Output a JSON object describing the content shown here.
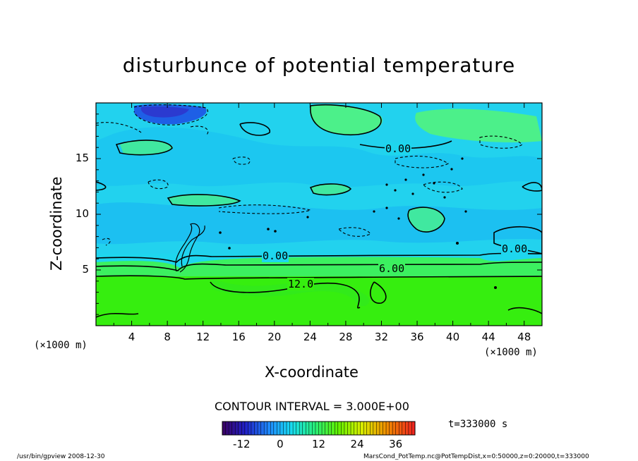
{
  "chart_data": {
    "type": "heatmap",
    "title": "disturbunce of potential temperature",
    "xlabel": "X-coordinate",
    "ylabel": "Z-coordinate",
    "x_unit_left": "(×1000 m)",
    "x_unit_right": "(×1000 m)",
    "xlim": [
      0,
      50
    ],
    "ylim": [
      0,
      20
    ],
    "x_ticks": [
      "4",
      "8",
      "12",
      "16",
      "20",
      "24",
      "28",
      "32",
      "36",
      "40",
      "44",
      "48"
    ],
    "y_ticks": [
      "5",
      "10",
      "15"
    ],
    "contour_labels": [
      "0.00",
      "0.00",
      "0.00",
      "6.00",
      "12.0"
    ],
    "contour_interval": "CONTOUR INTERVAL = 3.000E+00",
    "colorbar": {
      "range": [
        -18,
        42
      ],
      "tick_labels": [
        "-12",
        "0",
        "12",
        "24",
        "36"
      ]
    },
    "time_label": "t=333000 s"
  },
  "footer": {
    "left": "/usr/bin/gpview   2008-12-30",
    "right": "MarsCond_PotTemp.nc@PotTempDist,x=0:50000,z=0:20000,t=333000"
  },
  "colors": {
    "lower_layer": "#36ee0f",
    "upper_layer": "#1ed6ee",
    "deep_negative": "#1e5fe6",
    "positive_patch": "#4cf08a"
  }
}
